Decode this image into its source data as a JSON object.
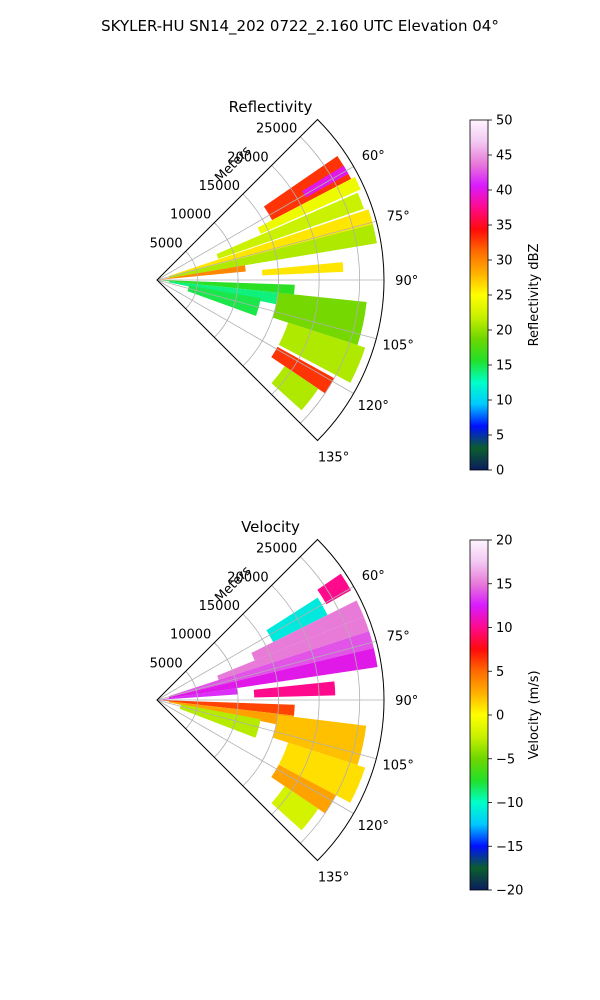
{
  "suptitle": "SKYLER-HU  SN14_202  0722_2.160 UTC Elevation 04°",
  "chart_data": [
    {
      "type": "heatmap",
      "projection": "polar-sector",
      "title": "Reflectivity",
      "radial_label": "Meters",
      "radial_ticks": [
        5000,
        10000,
        15000,
        20000,
        25000
      ],
      "radial_tick_labels": [
        "5000",
        "10000",
        "15000",
        "20000",
        "25000"
      ],
      "rmax": 28000,
      "theta_range_deg": [
        45,
        135
      ],
      "theta_ticks": [
        60,
        75,
        90,
        105,
        120,
        135
      ],
      "theta_tick_labels": [
        "60°",
        "75°",
        "90°",
        "105°",
        "120°",
        "135°"
      ],
      "grid": true,
      "colorbar": {
        "label": "Reflectivity dBZ",
        "range": [
          0,
          50
        ],
        "ticks": [
          0,
          5,
          10,
          15,
          20,
          25,
          30,
          35,
          40,
          45,
          50
        ],
        "tick_labels": [
          "0",
          "5",
          "10",
          "15",
          "20",
          "25",
          "30",
          "35",
          "40",
          "45",
          "50"
        ],
        "stops": [
          "#0b1c5e",
          "#0b5e2e",
          "#0010ff",
          "#00c8ff",
          "#00ffc8",
          "#22e02a",
          "#6ed600",
          "#c8f000",
          "#ffff00",
          "#ffb000",
          "#ff6a00",
          "#ff0a0a",
          "#ff0a8c",
          "#d81bff",
          "#e87ad8",
          "#f2c8f2",
          "#fff4ff"
        ]
      },
      "sectors": [
        {
          "theta": [
            55.5,
            62.5
          ],
          "r": [
            16000,
            27000
          ],
          "value": 33
        },
        {
          "theta": [
            58.5,
            61.0
          ],
          "r": [
            21000,
            27000
          ],
          "value": 40
        },
        {
          "theta": [
            62.5,
            66.0
          ],
          "r": [
            14000,
            27500
          ],
          "value": 24
        },
        {
          "theta": [
            66.5,
            71.0
          ],
          "r": [
            8000,
            27000
          ],
          "value": 22
        },
        {
          "theta": [
            71.5,
            75.5
          ],
          "r": [
            1500,
            27500
          ],
          "value": 26
        },
        {
          "theta": [
            75.5,
            80.5
          ],
          "r": [
            1500,
            27500
          ],
          "value": 21
        },
        {
          "theta": [
            80.5,
            84.5
          ],
          "r": [
            0,
            11000
          ],
          "value": 30
        },
        {
          "theta": [
            84.5,
            87.5
          ],
          "r": [
            13000,
            23000
          ],
          "value": 26
        },
        {
          "theta": [
            92.0,
            96.0
          ],
          "r": [
            0,
            17000
          ],
          "value": 16
        },
        {
          "theta": [
            96.0,
            101.5
          ],
          "r": [
            1500,
            17000
          ],
          "value": 14
        },
        {
          "theta": [
            100.0,
            110.0
          ],
          "r": [
            4000,
            13000
          ],
          "value": 15
        },
        {
          "theta": [
            96.0,
            108.0
          ],
          "r": [
            15000,
            26000
          ],
          "value": 19
        },
        {
          "theta": [
            108.0,
            118.0
          ],
          "r": [
            17000,
            27000
          ],
          "value": 21
        },
        {
          "theta": [
            119.0,
            124.0
          ],
          "r": [
            17000,
            25000
          ],
          "value": 33
        },
        {
          "theta": [
            124.0,
            132.0
          ],
          "r": [
            19000,
            24000
          ],
          "value": 21
        }
      ]
    },
    {
      "type": "heatmap",
      "projection": "polar-sector",
      "title": "Velocity",
      "radial_label": "Meters",
      "radial_ticks": [
        5000,
        10000,
        15000,
        20000,
        25000
      ],
      "radial_tick_labels": [
        "5000",
        "10000",
        "15000",
        "20000",
        "25000"
      ],
      "rmax": 28000,
      "theta_range_deg": [
        45,
        135
      ],
      "theta_ticks": [
        60,
        75,
        90,
        105,
        120,
        135
      ],
      "theta_tick_labels": [
        "60°",
        "75°",
        "90°",
        "105°",
        "120°",
        "135°"
      ],
      "grid": true,
      "colorbar": {
        "label": "Velocity (m/s)",
        "range": [
          -20,
          20
        ],
        "ticks": [
          -20,
          -15,
          -10,
          -5,
          0,
          5,
          10,
          15,
          20
        ],
        "tick_labels": [
          "−20",
          "−15",
          "−10",
          "−5",
          "0",
          "5",
          "10",
          "15",
          "20"
        ],
        "stops": [
          "#0b1c5e",
          "#0b5e2e",
          "#0010ff",
          "#00c8ff",
          "#00ffc8",
          "#22e02a",
          "#6ed600",
          "#c8f000",
          "#ffff00",
          "#ffb000",
          "#ff6a00",
          "#ff0a0a",
          "#ff0a8c",
          "#d81bff",
          "#e87ad8",
          "#f2c8f2",
          "#fff4ff"
        ]
      },
      "sectors": [
        {
          "theta": [
            55.5,
            60.5
          ],
          "r": [
            24000,
            27500
          ],
          "value": 10
        },
        {
          "theta": [
            57.5,
            63.5
          ],
          "r": [
            16000,
            23500
          ],
          "value": -11
        },
        {
          "theta": [
            63.5,
            68.0
          ],
          "r": [
            13000,
            27500
          ],
          "value": 15
        },
        {
          "theta": [
            68.0,
            72.0
          ],
          "r": [
            8000,
            27500
          ],
          "value": 15
        },
        {
          "theta": [
            72.0,
            76.5
          ],
          "r": [
            1500,
            27500
          ],
          "value": 14
        },
        {
          "theta": [
            76.5,
            81.5
          ],
          "r": [
            1500,
            27500
          ],
          "value": 12
        },
        {
          "theta": [
            81.5,
            86.0
          ],
          "r": [
            0,
            10000
          ],
          "value": 13
        },
        {
          "theta": [
            84.0,
            88.5
          ],
          "r": [
            12000,
            22000
          ],
          "value": 10
        },
        {
          "theta": [
            92.0,
            96.5
          ],
          "r": [
            0,
            17000
          ],
          "value": 6
        },
        {
          "theta": [
            96.5,
            101.5
          ],
          "r": [
            1500,
            17000
          ],
          "value": 3
        },
        {
          "theta": [
            100.5,
            111.0
          ],
          "r": [
            3000,
            13000
          ],
          "value": -3
        },
        {
          "theta": [
            97.0,
            108.0
          ],
          "r": [
            15000,
            26000
          ],
          "value": 2
        },
        {
          "theta": [
            108.0,
            118.0
          ],
          "r": [
            17000,
            27000
          ],
          "value": 1
        },
        {
          "theta": [
            118.0,
            124.0
          ],
          "r": [
            17000,
            25000
          ],
          "value": 3
        },
        {
          "theta": [
            124.0,
            132.0
          ],
          "r": [
            19000,
            24000
          ],
          "value": -2
        }
      ]
    }
  ]
}
